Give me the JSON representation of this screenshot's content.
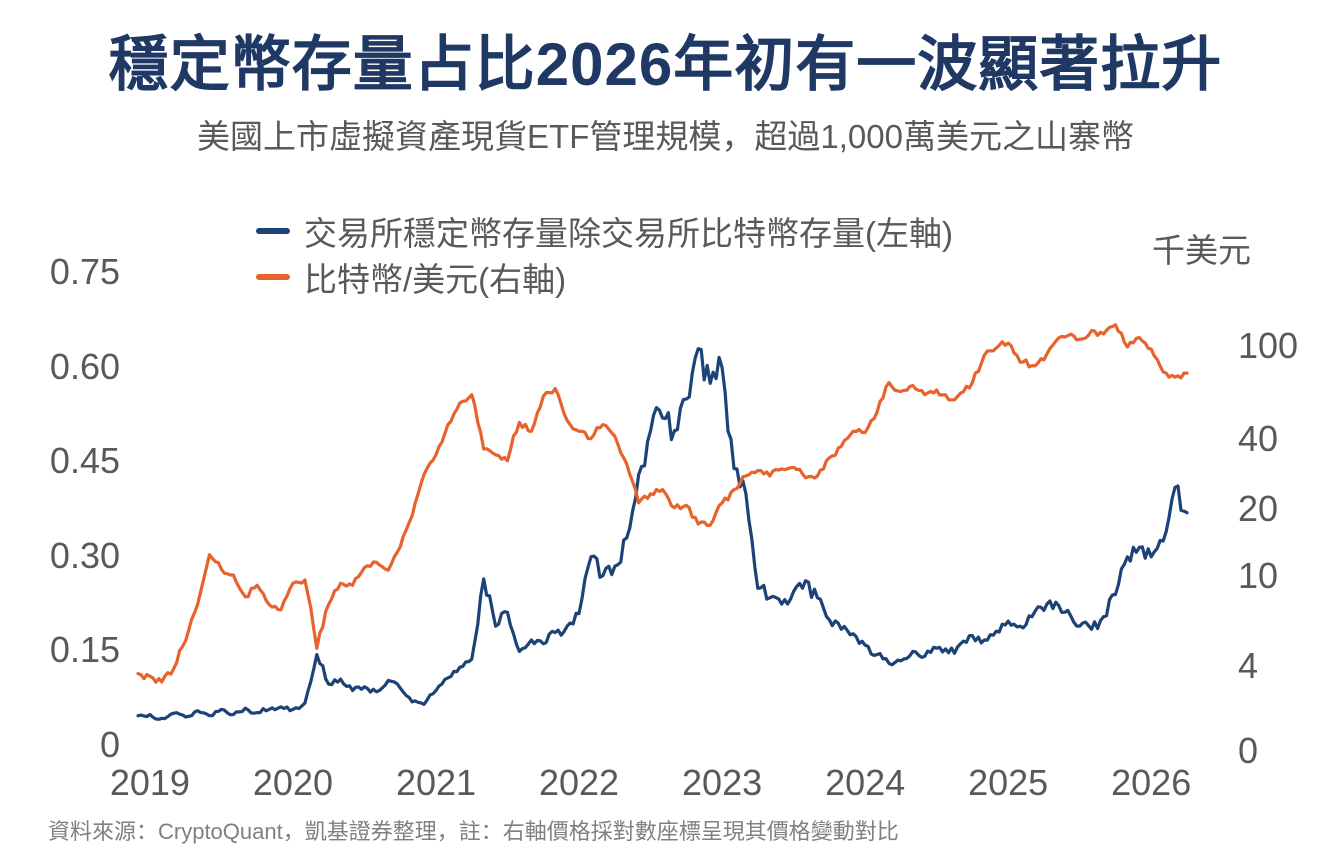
{
  "header": {
    "title": "穩定幣存量占比2026年初有一波顯著拉升",
    "subtitle": "美國上市虛擬資產現貨ETF管理規模，超過1,000萬美元之山寨幣"
  },
  "footer": {
    "source_note": "資料來源：CryptoQuant，凱基證券整理，註：右軸價格採對數座標呈現其價格變動對比"
  },
  "colors": {
    "title_navy": "#1f3864",
    "series_blue": "#1c4377",
    "series_orange": "#e8622d",
    "axis_gray": "#595959",
    "footer_gray": "#808080"
  },
  "chart_data": {
    "type": "line",
    "title": "穩定幣存量占比2026年初有一波顯著拉升",
    "subtitle": "美國上市虛擬資產現貨ETF管理規模，超過1,000萬美元之山寨幣",
    "x": {
      "start": "2018-12",
      "end": "2026-04",
      "interval": "monthly",
      "points": 89
    },
    "x_tick_labels": [
      "2019",
      "2020",
      "2021",
      "2022",
      "2023",
      "2024",
      "2025",
      "2026"
    ],
    "grid": "off",
    "legend_position": "top-left",
    "left_axis": {
      "scale": "linear",
      "range": [
        0,
        0.75
      ],
      "ticks": [
        "0",
        "0.15",
        "0.30",
        "0.45",
        "0.60",
        "0.75"
      ]
    },
    "right_axis": {
      "unit_label": "千美元",
      "scale": "log",
      "ticks": [
        "0",
        "4",
        "10",
        "20",
        "40",
        "100"
      ],
      "note": "右軸價格採對數座標"
    },
    "series": [
      {
        "name": "交易所穩定幣存量除交易所比特幣存量(左軸)",
        "axis": "left",
        "color": "#1c4377",
        "values": [
          0.048,
          0.05,
          0.044,
          0.052,
          0.046,
          0.056,
          0.048,
          0.058,
          0.05,
          0.06,
          0.053,
          0.058,
          0.062,
          0.058,
          0.068,
          0.145,
          0.098,
          0.106,
          0.088,
          0.094,
          0.086,
          0.104,
          0.092,
          0.07,
          0.066,
          0.088,
          0.108,
          0.125,
          0.138,
          0.265,
          0.19,
          0.212,
          0.15,
          0.168,
          0.162,
          0.18,
          0.19,
          0.21,
          0.3,
          0.27,
          0.285,
          0.33,
          0.43,
          0.5,
          0.52,
          0.5,
          0.55,
          0.63,
          0.575,
          0.6,
          0.44,
          0.4,
          0.25,
          0.235,
          0.225,
          0.245,
          0.262,
          0.235,
          0.2,
          0.185,
          0.178,
          0.16,
          0.145,
          0.131,
          0.135,
          0.15,
          0.142,
          0.155,
          0.148,
          0.162,
          0.175,
          0.168,
          0.182,
          0.198,
          0.19,
          0.205,
          0.215,
          0.228,
          0.215,
          0.19,
          0.185,
          0.205,
          0.24,
          0.3,
          0.315,
          0.3,
          0.325,
          0.41,
          0.37
        ]
      },
      {
        "name": "比特幣/美元(右軸)",
        "axis": "right",
        "color": "#e8622d",
        "unit": "thousand USD",
        "values": [
          3.8,
          3.7,
          3.5,
          4.0,
          5.3,
          7.6,
          12.5,
          10.8,
          10.2,
          8.2,
          9.2,
          7.6,
          7.2,
          9.4,
          9.7,
          4.9,
          7.6,
          9.4,
          9.2,
          11.0,
          11.6,
          10.7,
          13.5,
          18.5,
          28.0,
          34.0,
          46.0,
          57.0,
          62.0,
          36.0,
          34.0,
          32.0,
          47.0,
          43.0,
          61.0,
          66.0,
          48.0,
          43.0,
          40.0,
          46.0,
          41.0,
          31.0,
          21.0,
          23.0,
          24.0,
          20.0,
          20.5,
          17.0,
          16.8,
          21.0,
          24.0,
          27.5,
          29.0,
          27.5,
          29.5,
          30.0,
          27.0,
          27.5,
          33.0,
          37.0,
          43.0,
          42.5,
          52.0,
          70.0,
          64.0,
          68.0,
          62.0,
          65.0,
          59.0,
          63.0,
          70.0,
          92.0,
          99.0,
          104.0,
          86.0,
          83.0,
          88.0,
          106.0,
          112.0,
          108.0,
          118.0,
          114.0,
          125.0,
          100.0,
          110.0,
          98.0,
          78.0,
          74.0,
          77.0
        ]
      }
    ]
  }
}
